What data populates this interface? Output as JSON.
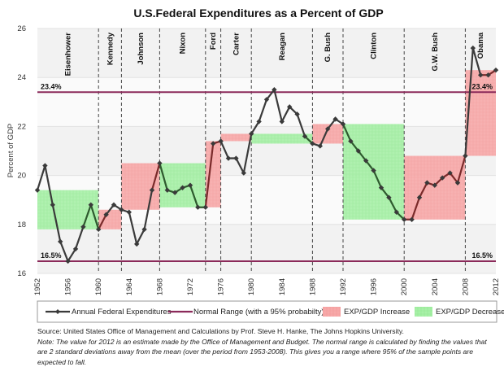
{
  "chart_data": {
    "type": "line",
    "title": "U.S.Federal Expenditures as a Percent of GDP",
    "xlabel": "",
    "ylabel": "Percent of GDP",
    "xlim": [
      1952,
      2012
    ],
    "ylim": [
      16,
      26
    ],
    "x_ticks": [
      1952,
      1956,
      1960,
      1964,
      1968,
      1972,
      1976,
      1980,
      1984,
      1988,
      1992,
      1996,
      2000,
      2004,
      2008,
      2012
    ],
    "y_ticks": [
      16,
      18,
      20,
      22,
      24,
      26
    ],
    "grid": true,
    "series": [
      {
        "name": "Annual Federal Expenditures",
        "color": "#3a3a3a",
        "x": [
          1952,
          1953,
          1954,
          1955,
          1956,
          1957,
          1958,
          1959,
          1960,
          1961,
          1962,
          1963,
          1964,
          1965,
          1966,
          1967,
          1968,
          1969,
          1970,
          1971,
          1972,
          1973,
          1974,
          1975,
          1976,
          1977,
          1978,
          1979,
          1980,
          1981,
          1982,
          1983,
          1984,
          1985,
          1986,
          1987,
          1988,
          1989,
          1990,
          1991,
          1992,
          1993,
          1994,
          1995,
          1996,
          1997,
          1998,
          1999,
          2000,
          2001,
          2002,
          2003,
          2004,
          2005,
          2006,
          2007,
          2008,
          2009,
          2010,
          2011,
          2012
        ],
        "values": [
          19.4,
          20.4,
          18.8,
          17.3,
          16.5,
          17.0,
          17.9,
          18.8,
          17.8,
          18.4,
          18.8,
          18.6,
          18.5,
          17.2,
          17.8,
          19.4,
          20.5,
          19.4,
          19.3,
          19.5,
          19.6,
          18.7,
          18.7,
          21.3,
          21.4,
          20.7,
          20.7,
          20.1,
          21.7,
          22.2,
          23.1,
          23.5,
          22.2,
          22.8,
          22.5,
          21.6,
          21.3,
          21.2,
          21.9,
          22.3,
          22.1,
          21.4,
          21.0,
          20.6,
          20.2,
          19.5,
          19.1,
          18.5,
          18.2,
          18.2,
          19.1,
          19.7,
          19.6,
          19.9,
          20.1,
          19.7,
          20.8,
          25.2,
          24.1,
          24.1,
          24.3
        ]
      },
      {
        "name": "Normal Range (with a 95% probabilty)",
        "color": "#8b2a5a",
        "bounds": [
          16.5,
          23.4
        ],
        "labels": [
          "16.5%",
          "23.4%"
        ]
      }
    ],
    "presidencies": [
      {
        "name": "Eisenhower",
        "start": 1952,
        "end": 1960,
        "change": "decrease",
        "low": 17.8,
        "high": 19.4
      },
      {
        "name": "Kennedy",
        "start": 1960,
        "end": 1963,
        "change": "increase",
        "low": 17.8,
        "high": 18.6
      },
      {
        "name": "Johnson",
        "start": 1963,
        "end": 1968,
        "change": "increase",
        "low": 18.6,
        "high": 20.5
      },
      {
        "name": "Nixon",
        "start": 1968,
        "end": 1974,
        "change": "decrease",
        "low": 18.7,
        "high": 20.5
      },
      {
        "name": "Ford",
        "start": 1974,
        "end": 1976,
        "change": "increase",
        "low": 18.7,
        "high": 21.4
      },
      {
        "name": "Carter",
        "start": 1976,
        "end": 1980,
        "change": "increase",
        "low": 21.4,
        "high": 21.7
      },
      {
        "name": "Reagan",
        "start": 1980,
        "end": 1988,
        "change": "decrease",
        "low": 21.3,
        "high": 21.7
      },
      {
        "name": "G. Bush",
        "start": 1988,
        "end": 1992,
        "change": "increase",
        "low": 21.3,
        "high": 22.1
      },
      {
        "name": "Clinton",
        "start": 1992,
        "end": 2000,
        "change": "decrease",
        "low": 18.2,
        "high": 22.1
      },
      {
        "name": "G.W. Bush",
        "start": 2000,
        "end": 2008,
        "change": "increase",
        "low": 18.2,
        "high": 20.8
      },
      {
        "name": "Obama",
        "start": 2008,
        "end": 2012,
        "change": "increase",
        "low": 20.8,
        "high": 24.3
      }
    ],
    "legend": {
      "placement": "bottom",
      "entries": [
        "Annual Federal Expenditures",
        "Normal Range (with a 95% probabilty)",
        "EXP/GDP Increase",
        "EXP/GDP Decrease"
      ]
    },
    "colors": {
      "increase": "#f7a9a9",
      "decrease": "#a8f0a8",
      "line": "#3a3a3a",
      "line_increase": "#7a2a2a",
      "line_decrease": "#2e5a2e",
      "range": "#8b2a5a"
    }
  },
  "footnote": {
    "source": "Source:  United States Office of Management and Calculations by Prof. Steve H. Hanke, The Johns Hopkins University.",
    "note": "Note: The value for 2012 is an estimate made by the Office of Management and Budget. The normal range is calculated by finding the values that are 2 standard deviations away from the mean (over the period from 1953-2008). This gives you a range where 95% of the sample points are expected to fall."
  }
}
